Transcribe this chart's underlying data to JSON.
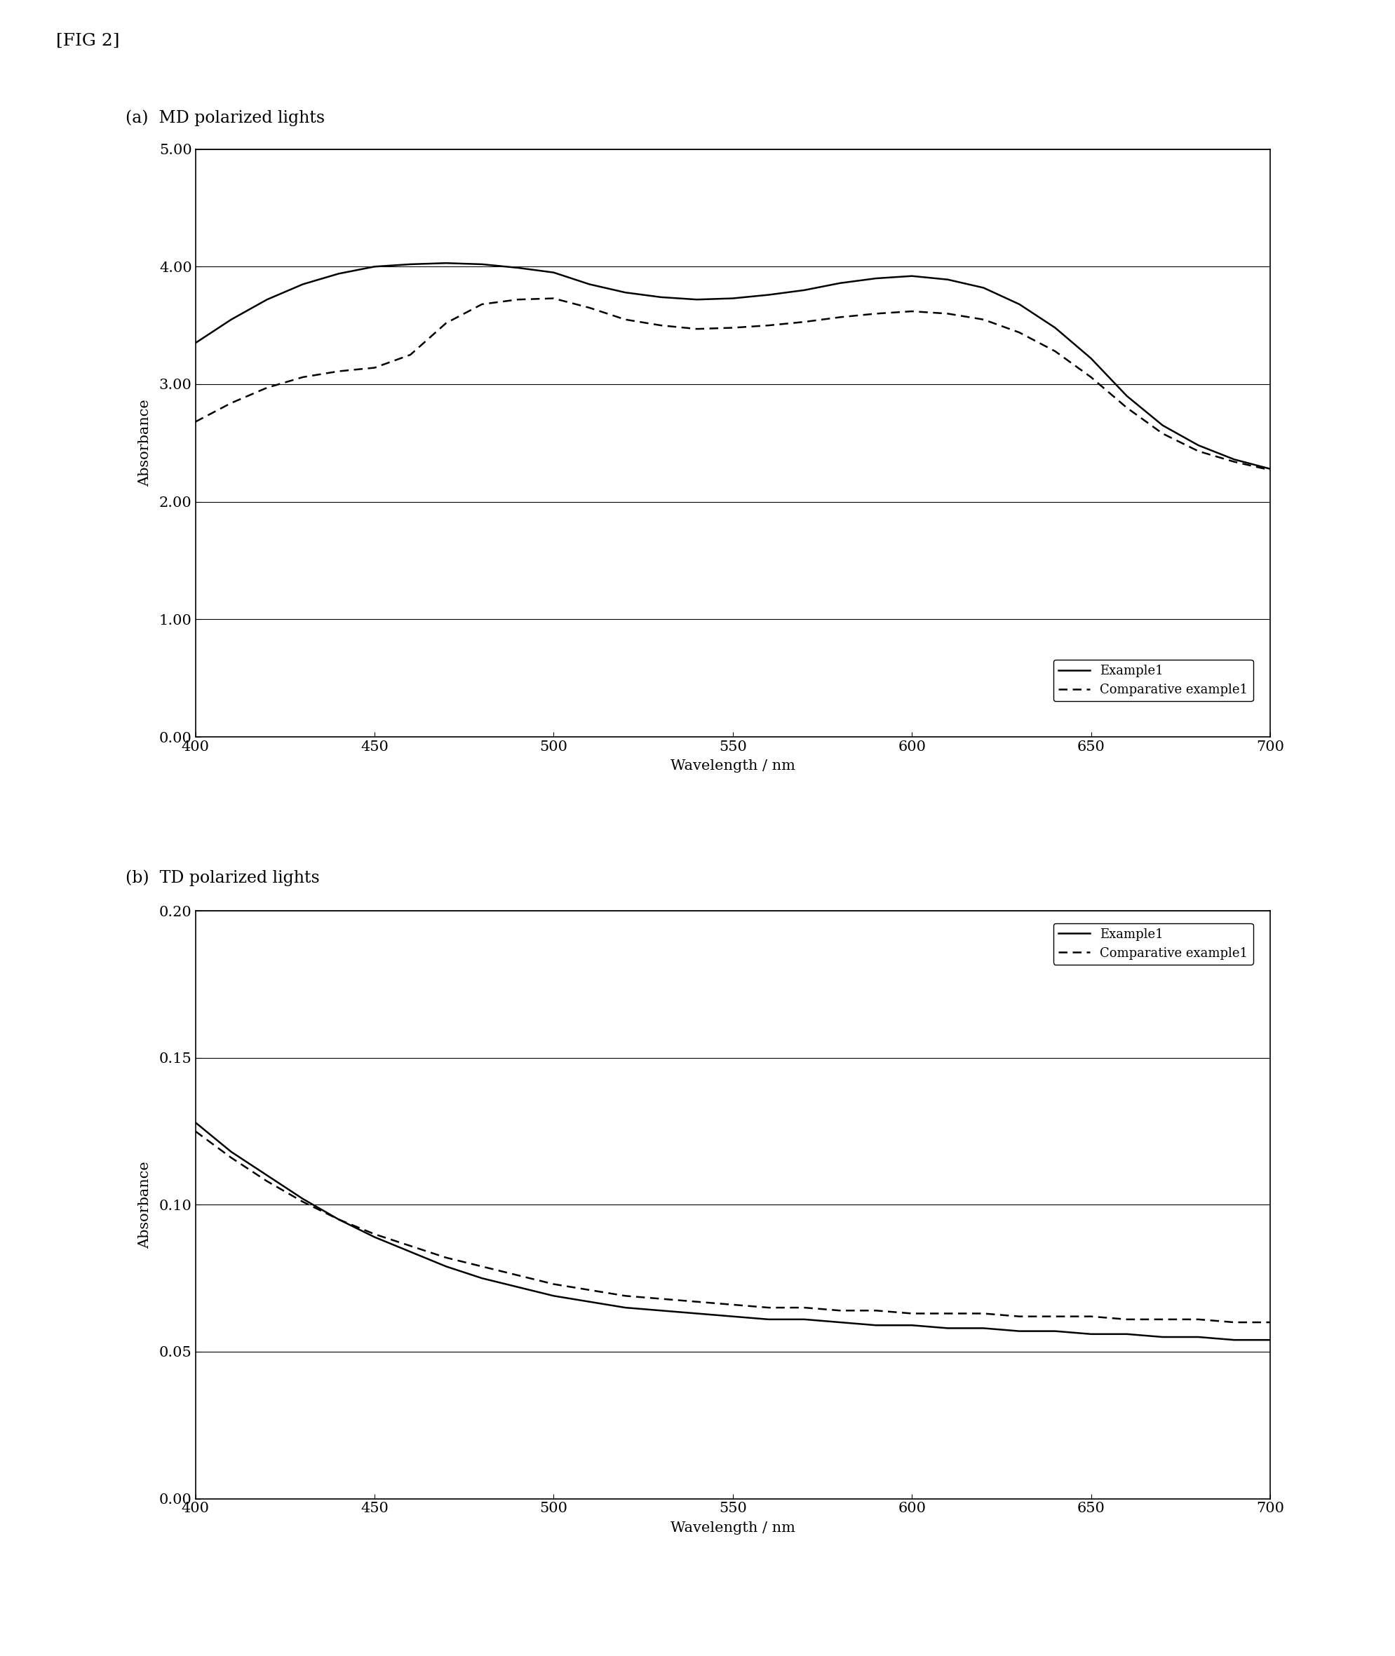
{
  "fig_label": "[FIG 2]",
  "subplot_a_title": "(a)  MD polarized lights",
  "subplot_b_title": "(b)  TD polarized lights",
  "xlabel": "Wavelength / nm",
  "ylabel": "Absorbance",
  "a_ylim": [
    0.0,
    5.0
  ],
  "b_ylim": [
    0.0,
    0.2
  ],
  "a_yticks": [
    0.0,
    1.0,
    2.0,
    3.0,
    4.0,
    5.0
  ],
  "b_yticks": [
    0.0,
    0.05,
    0.1,
    0.15,
    0.2
  ],
  "xlim": [
    400,
    700
  ],
  "xticks": [
    400,
    450,
    500,
    550,
    600,
    650,
    700
  ],
  "wavelengths": [
    400,
    410,
    420,
    430,
    440,
    450,
    460,
    470,
    480,
    490,
    500,
    510,
    520,
    530,
    540,
    550,
    560,
    570,
    580,
    590,
    600,
    610,
    620,
    630,
    640,
    650,
    660,
    670,
    680,
    690,
    700
  ],
  "a_example1": [
    3.35,
    3.55,
    3.72,
    3.85,
    3.94,
    4.0,
    4.02,
    4.03,
    4.02,
    3.99,
    3.95,
    3.85,
    3.78,
    3.74,
    3.72,
    3.73,
    3.76,
    3.8,
    3.86,
    3.9,
    3.92,
    3.89,
    3.82,
    3.68,
    3.48,
    3.22,
    2.9,
    2.65,
    2.48,
    2.36,
    2.28
  ],
  "a_comparative": [
    2.68,
    2.84,
    2.97,
    3.06,
    3.11,
    3.14,
    3.25,
    3.52,
    3.68,
    3.72,
    3.73,
    3.65,
    3.55,
    3.5,
    3.47,
    3.48,
    3.5,
    3.53,
    3.57,
    3.6,
    3.62,
    3.6,
    3.55,
    3.44,
    3.28,
    3.06,
    2.8,
    2.58,
    2.43,
    2.34,
    2.27
  ],
  "b_example1": [
    0.128,
    0.118,
    0.11,
    0.102,
    0.095,
    0.089,
    0.084,
    0.079,
    0.075,
    0.072,
    0.069,
    0.067,
    0.065,
    0.064,
    0.063,
    0.062,
    0.061,
    0.061,
    0.06,
    0.059,
    0.059,
    0.058,
    0.058,
    0.057,
    0.057,
    0.056,
    0.056,
    0.055,
    0.055,
    0.054,
    0.054
  ],
  "b_comparative": [
    0.125,
    0.116,
    0.108,
    0.101,
    0.095,
    0.09,
    0.086,
    0.082,
    0.079,
    0.076,
    0.073,
    0.071,
    0.069,
    0.068,
    0.067,
    0.066,
    0.065,
    0.065,
    0.064,
    0.064,
    0.063,
    0.063,
    0.063,
    0.062,
    0.062,
    0.062,
    0.061,
    0.061,
    0.061,
    0.06,
    0.06
  ],
  "line_color": "#000000",
  "background_color": "#ffffff"
}
